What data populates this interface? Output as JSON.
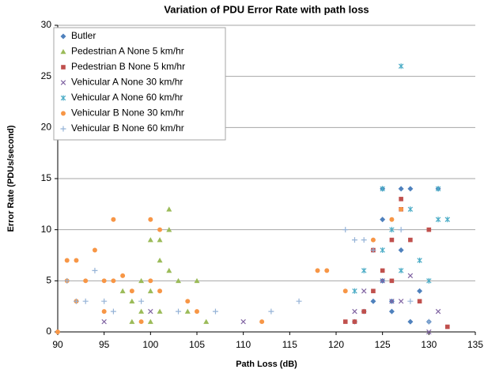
{
  "chart_data": {
    "type": "scatter",
    "title": "Variation of PDU Error Rate with path loss",
    "x_label": "Path Loss (dB)",
    "y_label": "Error Rate (PDUs/second)",
    "xlim": [
      90,
      135
    ],
    "xticks": [
      90,
      95,
      100,
      105,
      110,
      115,
      120,
      125,
      130,
      135
    ],
    "ylim": [
      0,
      30
    ],
    "yticks": [
      0,
      5,
      10,
      15,
      20,
      25,
      30
    ],
    "grid": true,
    "legend": "top-left",
    "series": [
      {
        "name": "Butler",
        "color": "#4f81bd",
        "marker": "diamond",
        "x": [
          122,
          123,
          124,
          125,
          125,
          126,
          127,
          127,
          128,
          129,
          131,
          125,
          126,
          128,
          130
        ],
        "values": [
          1,
          2,
          3,
          14,
          5,
          3,
          14,
          8,
          14,
          4,
          14,
          11,
          2,
          1,
          1
        ]
      },
      {
        "name": "Pedestrian A None 5 km/hr",
        "color": "#9bbb59",
        "marker": "triangle",
        "x": [
          97,
          98,
          99,
          100,
          100,
          101,
          101,
          102,
          102,
          103,
          104,
          100,
          101,
          99,
          98,
          102,
          105,
          106
        ],
        "values": [
          4,
          3,
          5,
          9,
          4,
          7,
          9,
          12,
          10,
          5,
          2,
          1,
          2,
          2,
          1,
          6,
          5,
          1
        ]
      },
      {
        "name": "Pedestrian B None 5 km/hr",
        "color": "#c0504d",
        "marker": "square",
        "x": [
          122,
          123,
          124,
          125,
          126,
          127,
          127,
          128,
          129,
          130,
          132,
          121,
          124,
          126
        ],
        "values": [
          1,
          2,
          4,
          6,
          9,
          13,
          12,
          9,
          3,
          10,
          0.5,
          1,
          8,
          5
        ]
      },
      {
        "name": "Vehicular A None 30 km/hr",
        "color": "#8064a2",
        "marker": "x",
        "x": [
          95,
          100,
          110,
          122,
          125,
          127,
          128,
          130,
          131,
          126,
          123
        ],
        "values": [
          1,
          2,
          1,
          2,
          5,
          3,
          5.5,
          0,
          2,
          3,
          4
        ]
      },
      {
        "name": "Vehicular A None 60 km/hr",
        "color": "#4bacc6",
        "marker": "star",
        "x": [
          123,
          125,
          126,
          127,
          128,
          129,
          130,
          131,
          132,
          131,
          125,
          127,
          122
        ],
        "values": [
          6,
          8,
          10,
          26,
          12,
          7,
          5,
          14,
          11,
          11,
          14,
          6,
          4
        ]
      },
      {
        "name": "Vehicular B None 30 km/hr",
        "color": "#f79646",
        "marker": "circle",
        "x": [
          91,
          91,
          92,
          93,
          94,
          95,
          96,
          96,
          97,
          98,
          100,
          100,
          101,
          101,
          104,
          105,
          112,
          118,
          119,
          121,
          124,
          126,
          127,
          90,
          92,
          95,
          99
        ],
        "values": [
          5,
          7,
          7,
          5,
          8,
          5,
          11,
          5,
          5.5,
          4,
          11,
          5,
          10,
          4,
          3,
          2,
          1,
          6,
          6,
          4,
          9,
          11,
          12,
          0,
          3,
          2,
          1
        ]
      },
      {
        "name": "Vehicular B None 60 km/hr",
        "color": "#95b3d7",
        "marker": "plus",
        "x": [
          91,
          92,
          93,
          94,
          95,
          96,
          99,
          103,
          107,
          113,
          116,
          121,
          122,
          123,
          124,
          127,
          128,
          130
        ],
        "values": [
          5,
          3,
          3,
          6,
          3,
          2,
          3,
          2,
          2,
          2,
          3,
          10,
          9,
          9,
          8,
          10,
          3,
          1
        ]
      }
    ]
  }
}
